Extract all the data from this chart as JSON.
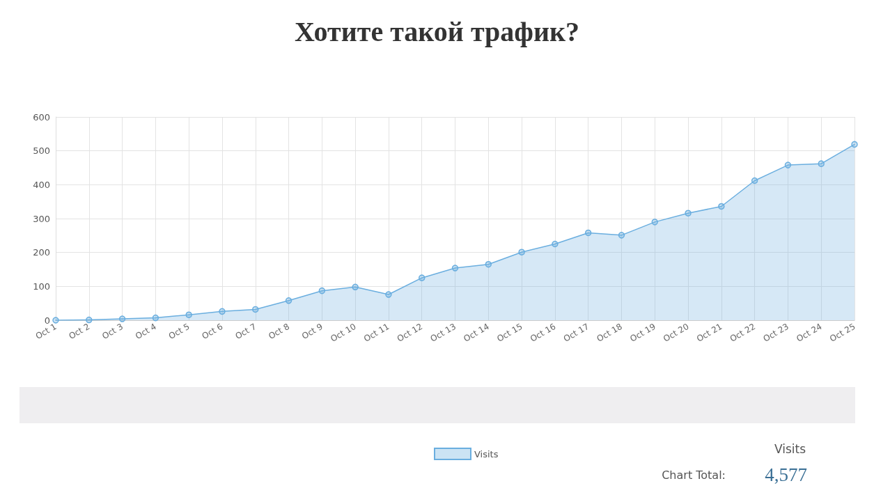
{
  "chart_data": {
    "type": "area",
    "title": "Хотите такой трафик?",
    "categories": [
      "Oct 1",
      "Oct 2",
      "Oct 3",
      "Oct 4",
      "Oct 5",
      "Oct 6",
      "Oct 7",
      "Oct 8",
      "Oct 9",
      "Oct 10",
      "Oct 11",
      "Oct 12",
      "Oct 13",
      "Oct 14",
      "Oct 15",
      "Oct 16",
      "Oct 17",
      "Oct 18",
      "Oct 19",
      "Oct 20",
      "Oct 21",
      "Oct 22",
      "Oct 23",
      "Oct 24",
      "Oct 25"
    ],
    "series": [
      {
        "name": "Visits",
        "color": "#6aaedf",
        "values": [
          0,
          1,
          4,
          7,
          16,
          26,
          32,
          58,
          87,
          98,
          76,
          125,
          154,
          165,
          201,
          225,
          258,
          251,
          290,
          316,
          336,
          412,
          458,
          462,
          519
        ]
      }
    ],
    "ylim": [
      0,
      600
    ],
    "yticks": [
      0,
      100,
      200,
      300,
      400,
      500,
      600
    ],
    "grid": true,
    "legend": "bottom",
    "marker": "circle",
    "line_style": "solid",
    "annotations": [
      "Visits",
      "Chart Total:",
      "4,577"
    ]
  }
}
